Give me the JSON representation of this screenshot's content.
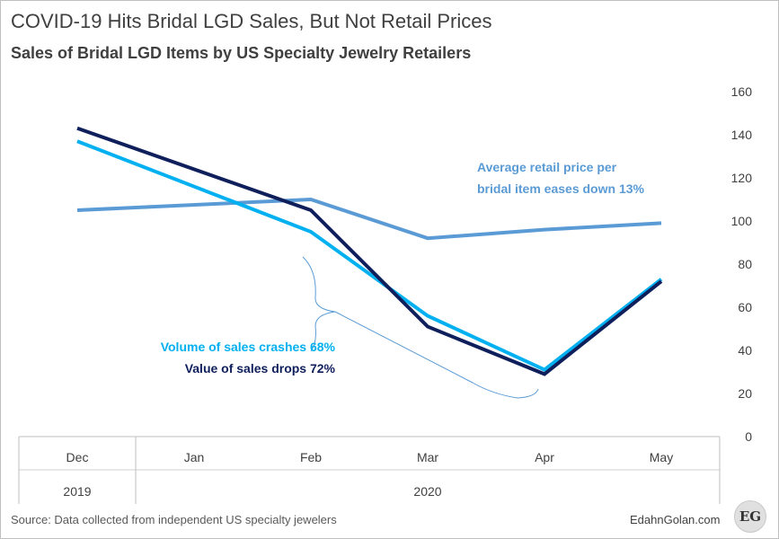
{
  "title": "COVID-19 Hits Bridal LGD Sales, But Not Retail Prices",
  "subtitle": "Sales of Bridal LGD Items by US Specialty Jewelry Retailers",
  "source": "Source: Data collected from independent US specialty jewelers",
  "brand": "EdahnGolan.com",
  "logo_text": "EG",
  "chart_data": {
    "type": "line",
    "categories": [
      "Dec",
      "Jan",
      "Feb",
      "Mar",
      "Apr",
      "May"
    ],
    "year_labels": [
      "2019",
      "2020"
    ],
    "ylim": [
      0,
      160
    ],
    "yticks": [
      0,
      20,
      40,
      60,
      80,
      100,
      120,
      140,
      160
    ],
    "y_axis_position": "right",
    "grid": false,
    "series": [
      {
        "key": "price",
        "x": [
          "Dec",
          "Feb",
          "Mar",
          "Apr",
          "May"
        ],
        "values": [
          105,
          110,
          92,
          96,
          99
        ],
        "color": "#5b9bd5"
      },
      {
        "key": "volume",
        "x": [
          "Dec",
          "Feb",
          "Mar",
          "Apr",
          "May"
        ],
        "values": [
          137,
          95,
          56,
          31,
          73
        ],
        "color": "#00b0f0"
      },
      {
        "key": "value",
        "x": [
          "Dec",
          "Feb",
          "Mar",
          "Apr",
          "May"
        ],
        "values": [
          143,
          105,
          51,
          29,
          72
        ],
        "color": "#0f1f5c"
      }
    ],
    "annotations": [
      {
        "lines": [
          "Average retail price per",
          "bridal  item eases down 13%"
        ],
        "color": "#5b9bd5"
      },
      {
        "lines": [
          "Volume of sales crashes 68%"
        ],
        "color": "#00b0f0"
      },
      {
        "lines": [
          "Value of sales drops 72%"
        ],
        "color": "#0f1f5c"
      }
    ]
  }
}
